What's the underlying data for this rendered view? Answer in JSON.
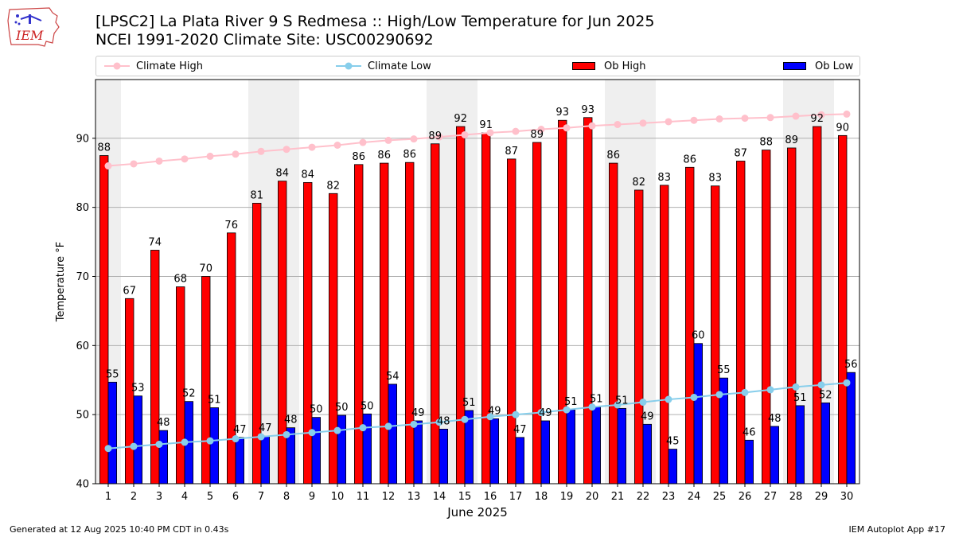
{
  "header": {
    "title_line1": "[LPSC2] La Plata River 9 S Redmesa :: High/Low Temperature for Jun 2025",
    "title_line2": "NCEI 1991-2020 Climate Site: USC00290692",
    "logo_text": "IEM"
  },
  "legend": [
    {
      "label": "Climate High",
      "color": "#ffc0cb",
      "kind": "line"
    },
    {
      "label": "Climate Low",
      "color": "#87ceeb",
      "kind": "line"
    },
    {
      "label": "Ob High",
      "color": "#ff0000",
      "kind": "bar"
    },
    {
      "label": "Ob Low",
      "color": "#0000ff",
      "kind": "bar"
    }
  ],
  "footer": {
    "generated": "Generated at 12 Aug 2025 10:40 PM CDT in 0.43s",
    "app": "IEM Autoplot App #17"
  },
  "chart_data": {
    "type": "bar",
    "xlabel": "June 2025",
    "ylabel": "Temperature °F",
    "ylim": [
      40,
      98.5
    ],
    "yticks": [
      40,
      50,
      60,
      70,
      80,
      90
    ],
    "grid": "horizontal",
    "weekend_shading_days": [
      1,
      7,
      8,
      14,
      15,
      21,
      22,
      28,
      29
    ],
    "categories": [
      "1",
      "2",
      "3",
      "4",
      "5",
      "6",
      "7",
      "8",
      "9",
      "10",
      "11",
      "12",
      "13",
      "14",
      "15",
      "16",
      "17",
      "18",
      "19",
      "20",
      "21",
      "22",
      "23",
      "24",
      "25",
      "26",
      "27",
      "28",
      "29",
      "30"
    ],
    "series": [
      {
        "name": "Ob High",
        "color": "#ff0000",
        "values": [
          87.5,
          66.8,
          73.8,
          68.5,
          70,
          76.3,
          80.6,
          83.8,
          83.6,
          82,
          86.2,
          86.4,
          86.5,
          89.2,
          91.7,
          90.8,
          87,
          89.4,
          92.6,
          93,
          86.4,
          82.5,
          83.2,
          85.8,
          83.1,
          86.7,
          88.3,
          88.6,
          91.7,
          90.4
        ],
        "labels": [
          88,
          67,
          74,
          68,
          70,
          76,
          81,
          84,
          84,
          82,
          86,
          86,
          86,
          89,
          92,
          91,
          87,
          89,
          93,
          93,
          86,
          82,
          83,
          86,
          83,
          87,
          88,
          89,
          92,
          90
        ]
      },
      {
        "name": "Ob Low",
        "color": "#0000ff",
        "values": [
          54.7,
          52.7,
          47.7,
          51.9,
          51,
          46.7,
          46.9,
          48.1,
          49.6,
          49.9,
          50.1,
          54.4,
          49.1,
          47.9,
          50.6,
          49.4,
          46.7,
          49.1,
          50.7,
          51.1,
          50.9,
          48.6,
          45,
          60.3,
          55.3,
          46.3,
          48.3,
          51.3,
          51.7,
          56.1
        ],
        "labels": [
          55,
          53,
          48,
          52,
          51,
          47,
          47,
          48,
          50,
          50,
          50,
          54,
          49,
          48,
          51,
          49,
          47,
          49,
          51,
          51,
          51,
          49,
          45,
          60,
          55,
          46,
          48,
          51,
          52,
          56
        ]
      },
      {
        "name": "Climate High",
        "color": "#ffc0cb",
        "values": [
          86.0,
          86.3,
          86.7,
          87.0,
          87.4,
          87.7,
          88.1,
          88.4,
          88.7,
          89.0,
          89.4,
          89.7,
          89.9,
          90.2,
          90.5,
          90.8,
          91.0,
          91.3,
          91.5,
          91.8,
          92.0,
          92.2,
          92.4,
          92.6,
          92.8,
          92.9,
          93.0,
          93.2,
          93.4,
          93.5
        ]
      },
      {
        "name": "Climate Low",
        "color": "#87ceeb",
        "values": [
          45.1,
          45.4,
          45.7,
          46.0,
          46.2,
          46.5,
          46.8,
          47.1,
          47.4,
          47.7,
          48.1,
          48.3,
          48.6,
          48.9,
          49.3,
          49.7,
          50.0,
          50.3,
          50.7,
          51.1,
          51.4,
          51.8,
          52.2,
          52.5,
          52.9,
          53.2,
          53.6,
          54.0,
          54.3,
          54.6
        ]
      }
    ]
  }
}
